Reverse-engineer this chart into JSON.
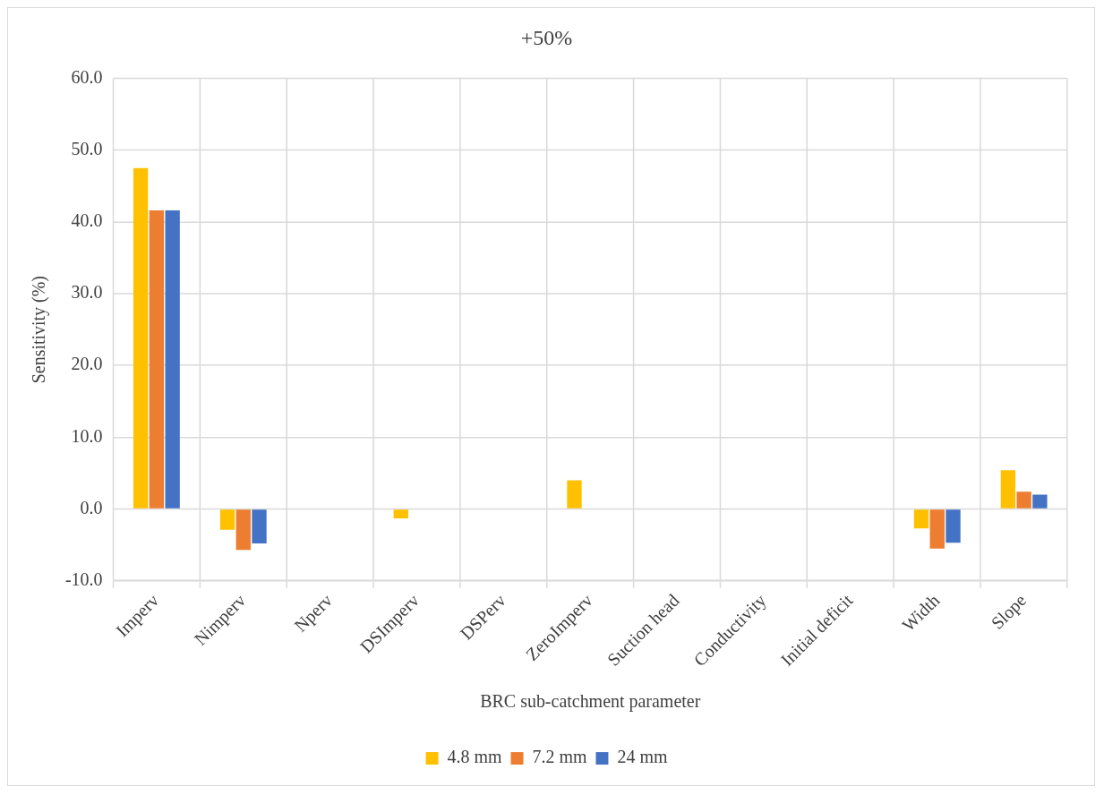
{
  "chart_data": {
    "type": "bar",
    "title": "+50%",
    "xlabel": "BRC sub-catchment parameter",
    "ylabel": "Sensitivity (%)",
    "categories": [
      "Imperv",
      "Nimperv",
      "Nperv",
      "DSImperv",
      "DSPerv",
      "ZeroImperv",
      "Suction head",
      "Conductivity",
      "Initial deficit",
      "Width",
      "Slope"
    ],
    "series": [
      {
        "name": "4.8 mm",
        "color": "#ffc000",
        "values": [
          47.5,
          -2.9,
          0,
          -1.3,
          0,
          4.0,
          0,
          0,
          0,
          -2.7,
          5.4
        ]
      },
      {
        "name": "7.2 mm",
        "color": "#ed7d31",
        "values": [
          41.6,
          -5.7,
          0,
          0,
          0,
          0,
          0,
          0,
          0,
          -5.5,
          2.4
        ]
      },
      {
        "name": "24 mm",
        "color": "#4472c4",
        "values": [
          41.6,
          -4.8,
          0,
          0,
          0,
          0,
          0,
          0,
          0,
          -4.7,
          2.0
        ]
      }
    ],
    "ylim": [
      -10,
      60
    ],
    "yticks": [
      {
        "value": -10,
        "label": "-10.0"
      },
      {
        "value": 0,
        "label": "0.0"
      },
      {
        "value": 10,
        "label": "10.0"
      },
      {
        "value": 20,
        "label": "20.0"
      },
      {
        "value": 30,
        "label": "30.0"
      },
      {
        "value": 40,
        "label": "40.0"
      },
      {
        "value": 50,
        "label": "50.0"
      },
      {
        "value": 60,
        "label": "60.0"
      }
    ],
    "grid": true,
    "legend": "bottom"
  }
}
